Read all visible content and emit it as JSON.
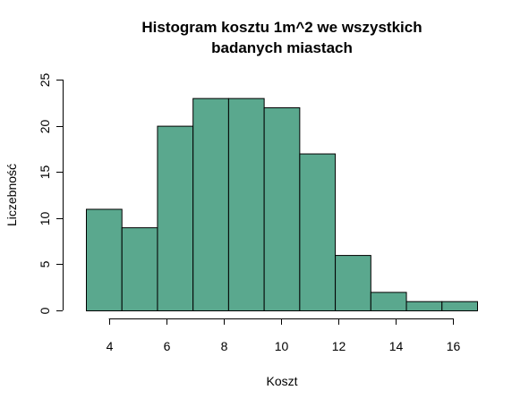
{
  "chart_data": {
    "type": "bar",
    "title_line1": "Histogram kosztu 1m^2 we wszystkich",
    "title_line2": "badanych miastach",
    "xlabel": "Koszt",
    "ylabel": "Liczebność",
    "bar_color": "#5aa88e",
    "bin_edges": [
      3.2,
      4.44,
      5.68,
      6.92,
      8.16,
      9.4,
      10.64,
      11.88,
      13.12,
      14.36,
      15.6,
      16.84
    ],
    "values": [
      11,
      9,
      20,
      23,
      23,
      22,
      17,
      6,
      2,
      1,
      1
    ],
    "xlim": [
      3.2,
      16.84
    ],
    "ylim": [
      0,
      25
    ],
    "x_ticks": [
      4,
      6,
      8,
      10,
      12,
      14,
      16
    ],
    "x_tick_labels": [
      "4",
      "6",
      "8",
      "10",
      "12",
      "14",
      "16"
    ],
    "y_ticks": [
      0,
      5,
      10,
      15,
      20,
      25
    ],
    "y_tick_labels": [
      "0",
      "5",
      "10",
      "15",
      "20",
      "25"
    ],
    "grid": false
  }
}
